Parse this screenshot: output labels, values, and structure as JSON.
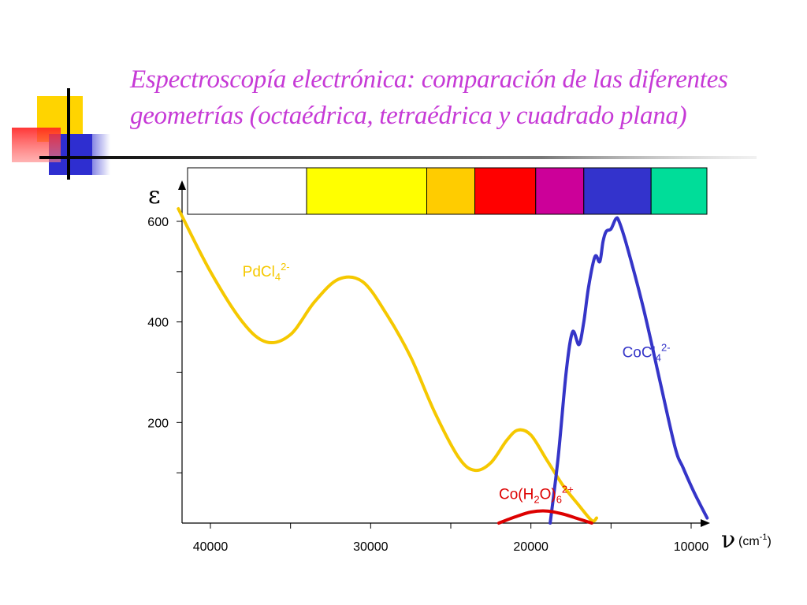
{
  "slide": {
    "title_lines": [
      "Espectroscopía electrónica: comparación de las diferentes",
      "geometrías (octaédrica, tetraédrica y cuadrado plana)"
    ],
    "title_color": "#c63ad6",
    "decoration_colors": [
      "#ffd400",
      "#ff0000",
      "#2e2ed0",
      "#000000"
    ]
  },
  "chart_data": {
    "type": "line",
    "title": "",
    "ylabel": "ε",
    "xlabel": "ν",
    "x_unit": "(cm-1)",
    "xlim": [
      42000,
      9000
    ],
    "ylim": [
      0,
      630
    ],
    "x_ticks": [
      40000,
      30000,
      20000,
      10000
    ],
    "y_ticks": [
      200,
      400,
      600
    ],
    "grid": false,
    "legend": "none",
    "color_band": [
      {
        "x_from": 42000,
        "x_to": 34000,
        "color": "#ffffff"
      },
      {
        "x_from": 34000,
        "x_to": 26500,
        "color": "#ffff00"
      },
      {
        "x_from": 26500,
        "x_to": 23500,
        "color": "#ffcc00"
      },
      {
        "x_from": 23500,
        "x_to": 19700,
        "color": "#ff0000"
      },
      {
        "x_from": 19700,
        "x_to": 16700,
        "color": "#cc0099"
      },
      {
        "x_from": 16700,
        "x_to": 12500,
        "color": "#3333cc"
      },
      {
        "x_from": 12500,
        "x_to": 8700,
        "color": "#00dd99"
      }
    ],
    "series": [
      {
        "name": "PdCl4 2-",
        "label": {
          "main": "PdCl",
          "sub": "4",
          "sup": "2-"
        },
        "label_at": [
          38000,
          490
        ],
        "color": "#f5c800",
        "x": [
          42000,
          40000,
          38000,
          36500,
          35000,
          33500,
          32000,
          30500,
          29000,
          27500,
          26000,
          24500,
          23500,
          22500,
          21500,
          20800,
          20000,
          19000,
          18000,
          17000,
          16200,
          15900
        ],
        "y": [
          625,
          500,
          400,
          360,
          375,
          440,
          485,
          480,
          415,
          330,
          220,
          130,
          105,
          120,
          165,
          185,
          175,
          125,
          75,
          35,
          5,
          10
        ]
      },
      {
        "name": "CoCl4 2-",
        "label": {
          "main": "CoCl",
          "sub": "4",
          "sup": "2-"
        },
        "label_at": [
          14300,
          330
        ],
        "color": "#3535c8",
        "x": [
          18800,
          18300,
          17800,
          17400,
          17000,
          16700,
          16400,
          16000,
          15700,
          15500,
          15300,
          15000,
          14700,
          14500,
          14000,
          13000,
          12000,
          11000,
          10500,
          9800,
          9000
        ],
        "y": [
          0,
          130,
          300,
          380,
          355,
          400,
          470,
          530,
          520,
          560,
          580,
          585,
          605,
          600,
          550,
          430,
          290,
          150,
          110,
          60,
          10
        ]
      },
      {
        "name": "Co(H2O)6 2+",
        "label": {
          "main": "Co(H",
          "sub": "2",
          "mid": "O)",
          "sub2": "6",
          "sup": "2+"
        },
        "label_at": [
          22000,
          48
        ],
        "color": "#dd0000",
        "x": [
          22000,
          21000,
          20000,
          19000,
          18000,
          17000,
          16200
        ],
        "y": [
          0,
          12,
          22,
          24,
          18,
          8,
          0
        ]
      }
    ]
  }
}
